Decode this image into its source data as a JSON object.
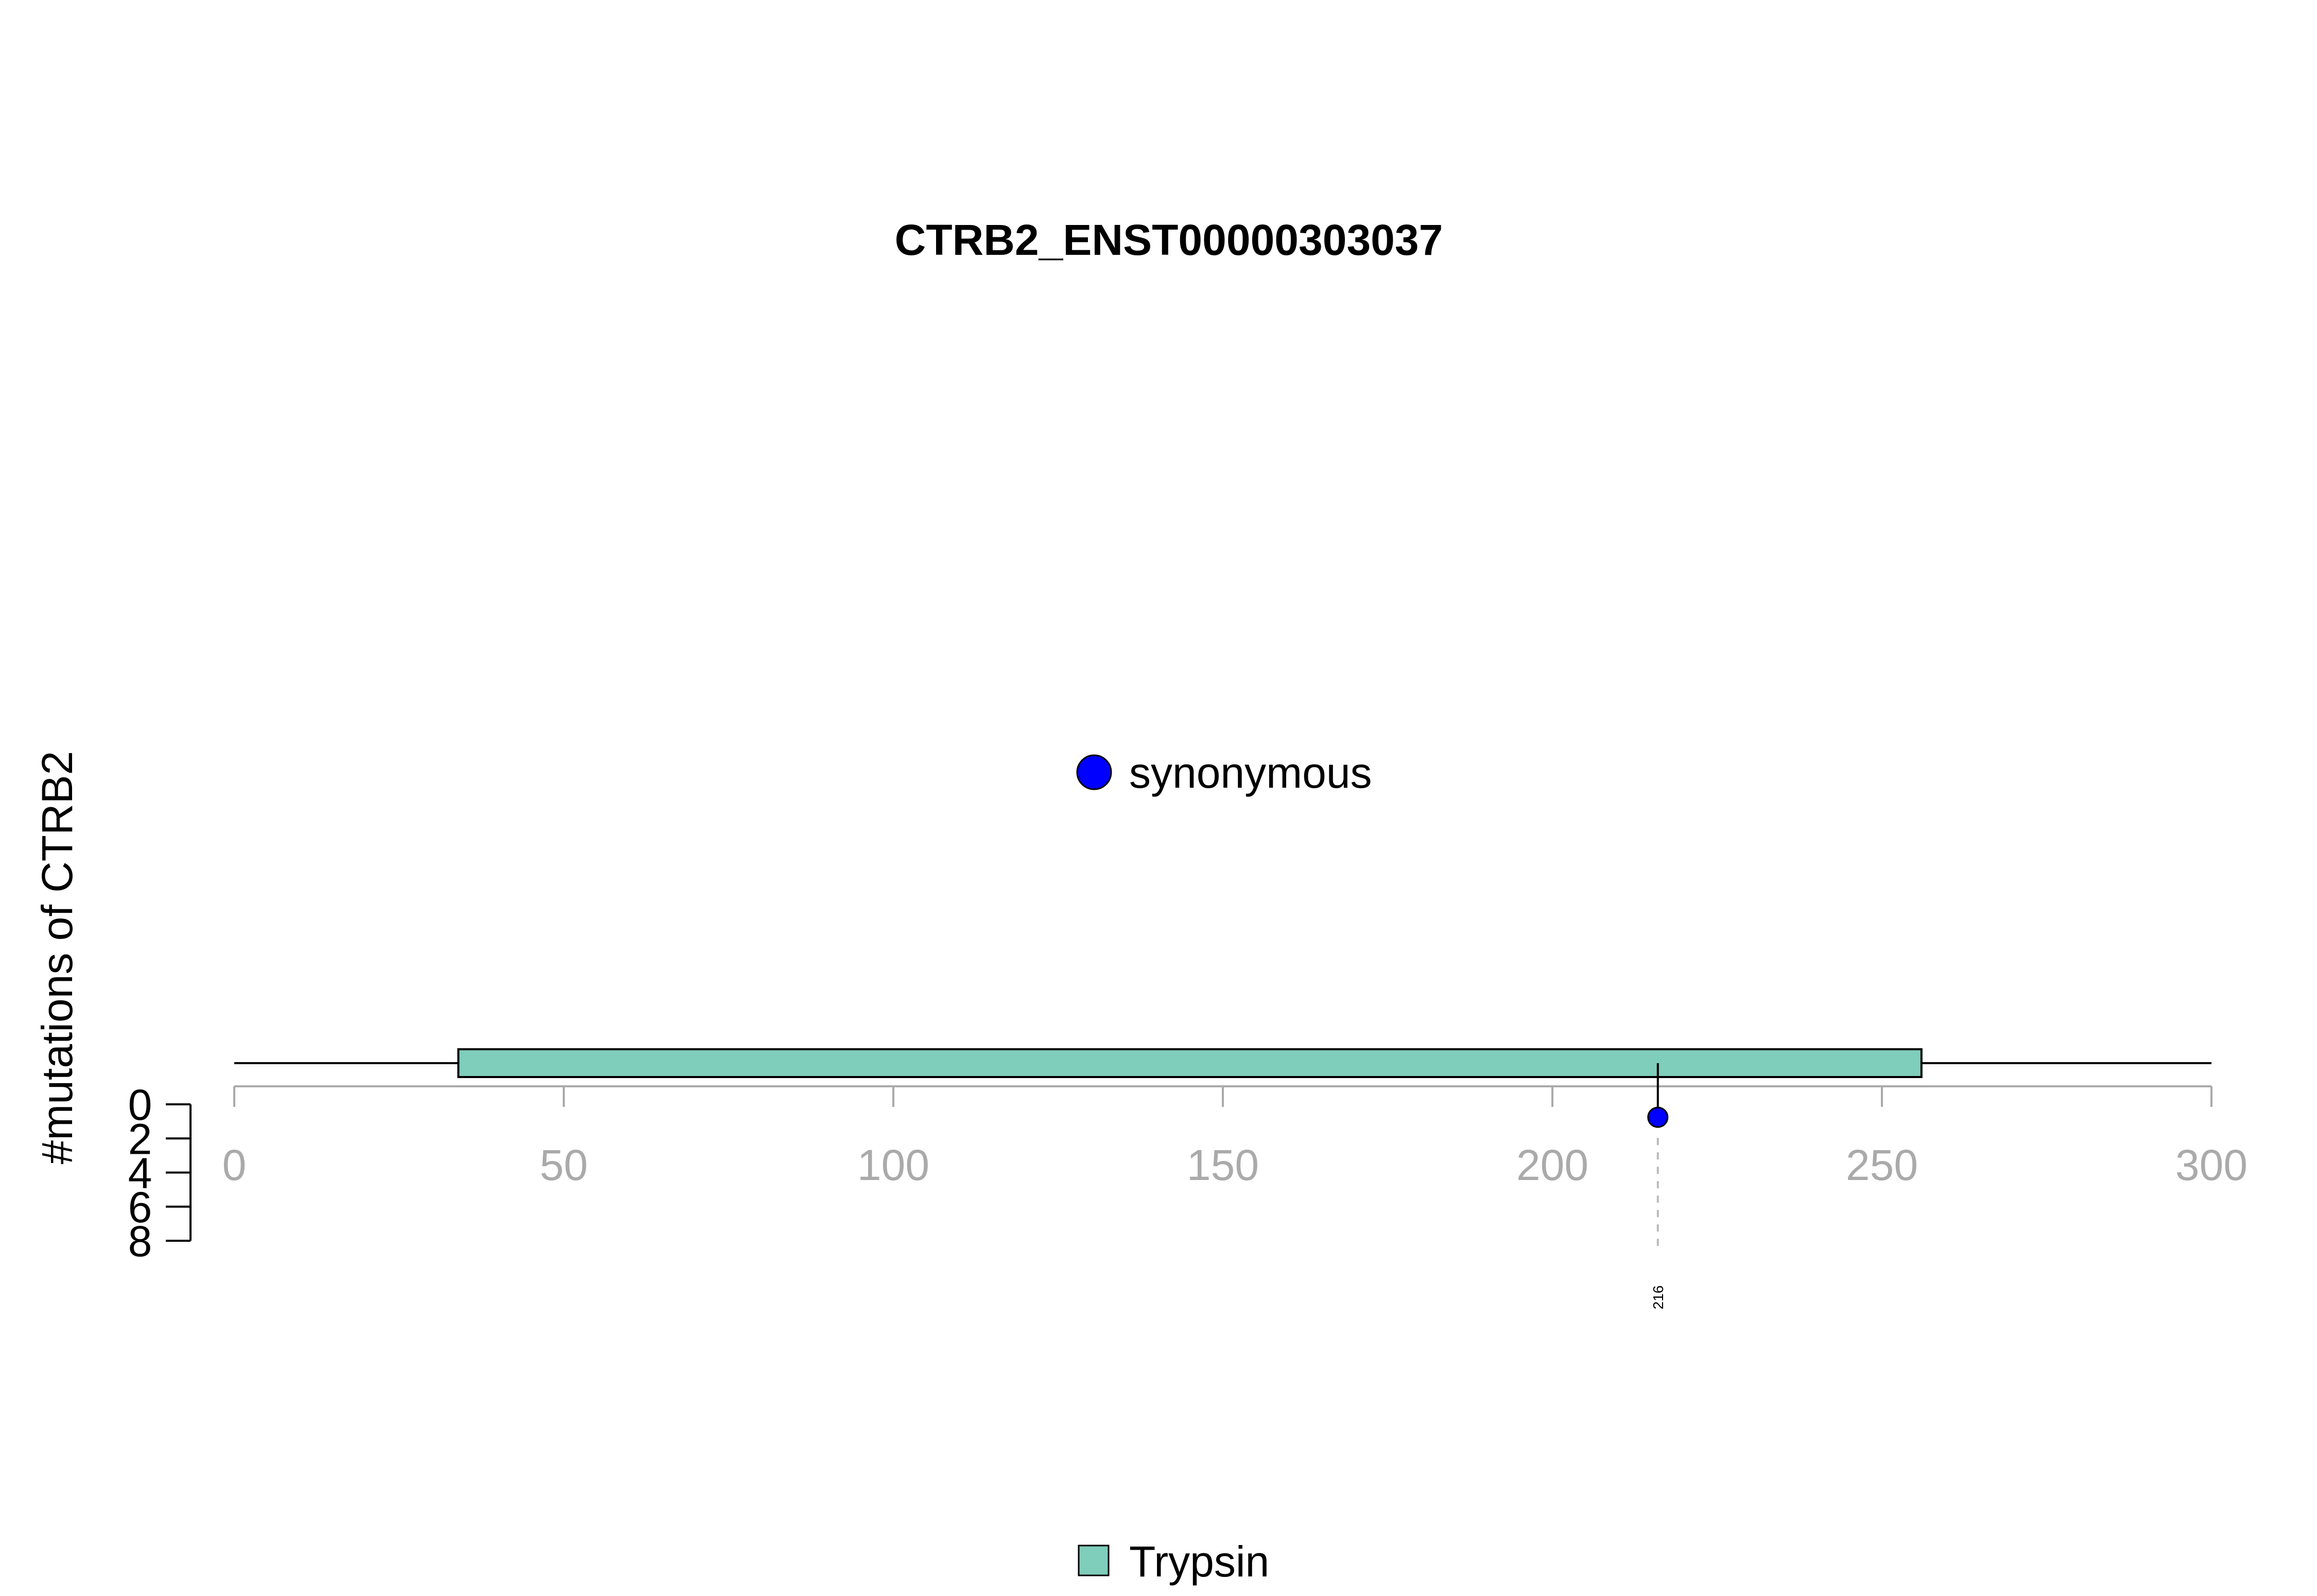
{
  "chart_data": {
    "type": "lollipop",
    "title": "CTRB2_ENST00000303037",
    "ylabel": "#mutations of CTRB2",
    "protein_length": 300,
    "xlim": [
      0,
      300
    ],
    "xticks": [
      0,
      50,
      100,
      150,
      200,
      250,
      300
    ],
    "ylim": [
      0,
      8
    ],
    "yticks": [
      0,
      2,
      4,
      6,
      8
    ],
    "domains": [
      {
        "name": "Trypsin",
        "start": 34,
        "end": 256,
        "color": "#7fcdbb"
      }
    ],
    "mutations": [
      {
        "position": 216,
        "count": 1,
        "type": "synonymous",
        "label": "216"
      }
    ],
    "mutation_legend": [
      {
        "label": "synonymous",
        "color": "#0000ff"
      }
    ],
    "domain_legend": [
      {
        "label": "Trypsin",
        "color": "#7fcdbb"
      }
    ],
    "colors": {
      "backbone": "#000000",
      "axis": "#aaaaaa",
      "stem": "#000000",
      "guide": "#bbbbbb"
    }
  }
}
